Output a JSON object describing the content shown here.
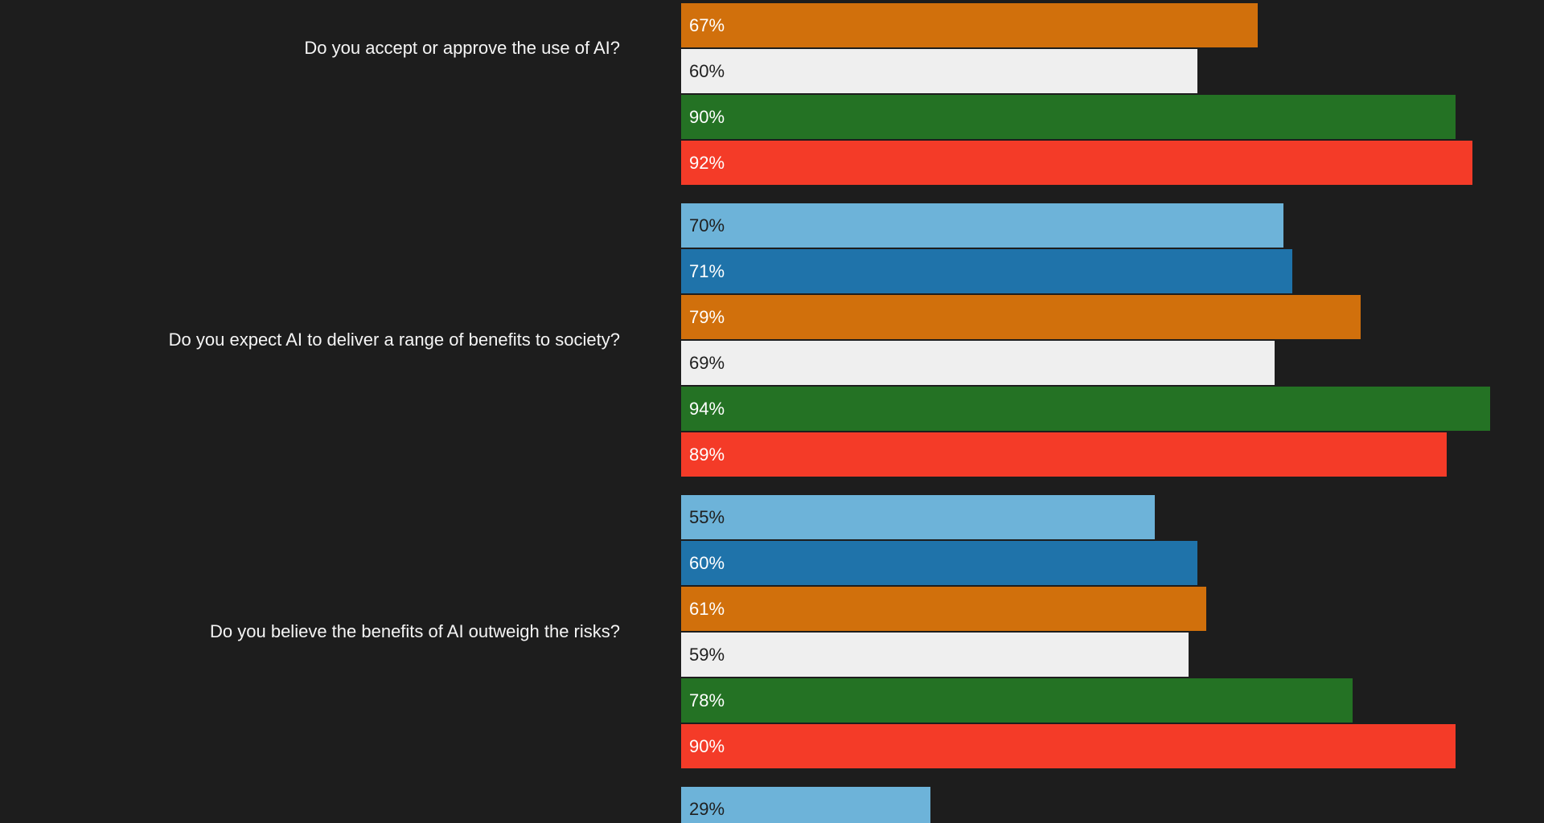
{
  "background": "#1d1d1d",
  "chart_data": {
    "type": "bar",
    "orientation": "horizontal",
    "unit": "%",
    "xlim": [
      0,
      100
    ],
    "grid": false,
    "legend": "none",
    "value_labels": "inside-left",
    "series_colors": [
      "#6db3d9",
      "#1f73aa",
      "#d1700c",
      "#efefef",
      "#247224",
      "#f43b28"
    ],
    "groups": [
      {
        "question": "Do you accept or approve the use of AI?",
        "values": [
          null,
          null,
          67,
          60,
          90,
          92
        ]
      },
      {
        "question": "Do you expect AI to deliver a range of benefits to society?",
        "values": [
          70,
          71,
          79,
          69,
          94,
          89
        ]
      },
      {
        "question": "Do you believe the benefits of AI outweigh the risks?",
        "values": [
          55,
          60,
          61,
          59,
          78,
          90
        ]
      },
      {
        "question": "",
        "values": [
          29,
          null,
          null,
          null,
          null,
          null
        ]
      }
    ]
  }
}
